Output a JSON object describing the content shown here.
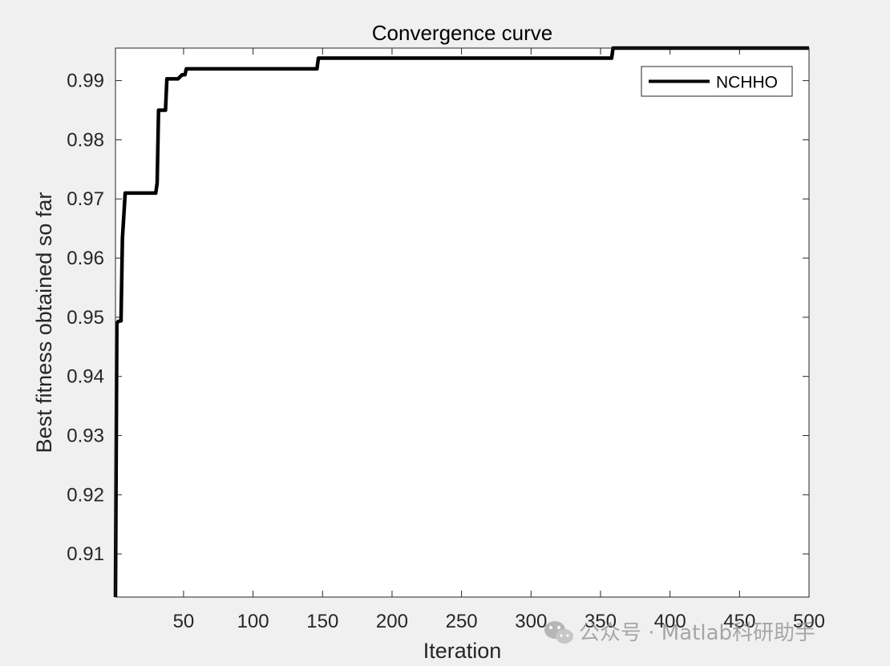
{
  "chart_data": {
    "type": "line",
    "title": "Convergence curve",
    "xlabel": "Iteration",
    "ylabel": "Best fitness obtained so far",
    "xlim": [
      1,
      500
    ],
    "ylim": [
      0.9027,
      0.9955
    ],
    "xticks": [
      50,
      100,
      150,
      200,
      250,
      300,
      350,
      400,
      450,
      500
    ],
    "yticks": [
      0.91,
      0.92,
      0.93,
      0.94,
      0.95,
      0.96,
      0.97,
      0.98,
      0.99
    ],
    "ytick_labels": [
      "0.91",
      "0.92",
      "0.93",
      "0.94",
      "0.95",
      "0.96",
      "0.97",
      "0.98",
      "0.99"
    ],
    "grid": false,
    "legend_position": "top-right",
    "series": [
      {
        "name": "NCHHO",
        "color": "#000000",
        "x": [
          1,
          2,
          3,
          5,
          6,
          8,
          30,
          31,
          32,
          37,
          38,
          46,
          49,
          51,
          52,
          146,
          147,
          358,
          359,
          500
        ],
        "y": [
          0.9027,
          0.949,
          0.9493,
          0.9494,
          0.9633,
          0.971,
          0.971,
          0.9727,
          0.985,
          0.985,
          0.9903,
          0.9903,
          0.991,
          0.991,
          0.992,
          0.992,
          0.9938,
          0.9938,
          0.9955,
          0.9955
        ]
      }
    ]
  },
  "watermark": {
    "icon": "wechat-icon",
    "text": "公众号 · Matlab科研助手"
  }
}
